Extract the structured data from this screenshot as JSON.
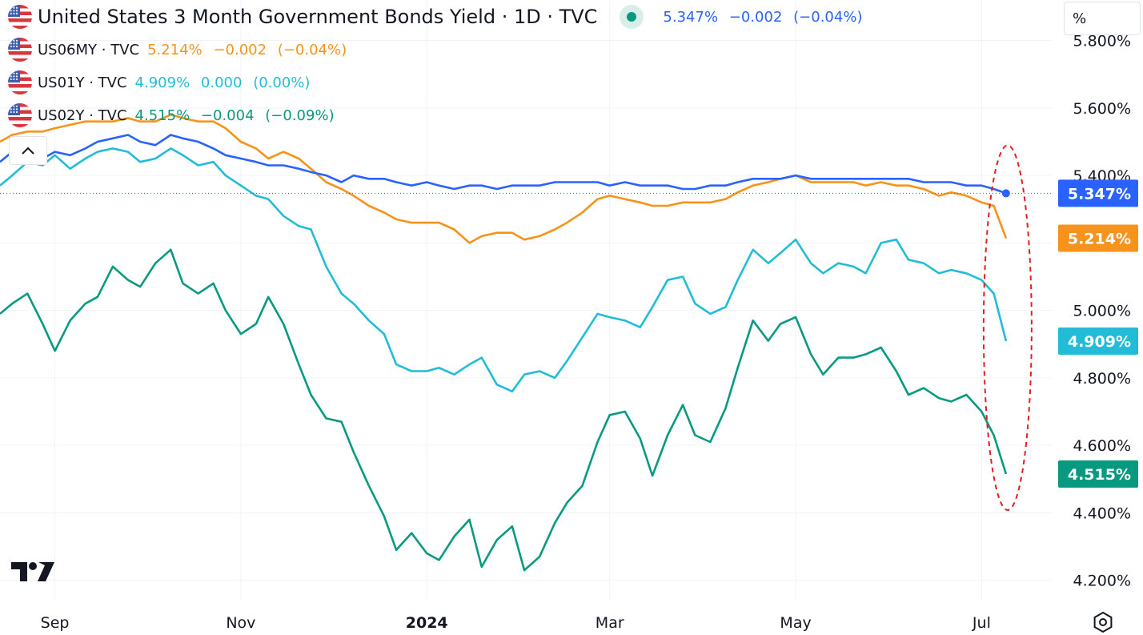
{
  "legend": {
    "main": {
      "symbol": "United States 3 Month Government Bonds Yield · 1D · TVC",
      "last": "5.347%",
      "change": "−0.002",
      "change_pct": "(−0.04%)",
      "color": "#2962ff"
    },
    "rows": [
      {
        "symbol": "US06MY · TVC",
        "last": "5.214%",
        "change": "−0.002",
        "change_pct": "(−0.04%)",
        "color": "#f7931a"
      },
      {
        "symbol": "US01Y · TVC",
        "last": "4.909%",
        "change": "0.000",
        "change_pct": "(0.00%)",
        "color": "#22bcd6"
      },
      {
        "symbol": "US02Y · TVC",
        "last": "4.515%",
        "change": "−0.004",
        "change_pct": "(−0.09%)",
        "color": "#089981"
      }
    ]
  },
  "scale_unit": "%",
  "icons": {
    "collapse": "chevron-up-icon",
    "logo": "tradingview-logo",
    "settings": "settings-icon",
    "dot": "status-dot-icon"
  },
  "chart_data": {
    "type": "line",
    "x_dates": [
      "2023-08-14",
      "2023-08-18",
      "2023-08-23",
      "2023-08-28",
      "2023-09-01",
      "2023-09-06",
      "2023-09-11",
      "2023-09-15",
      "2023-09-20",
      "2023-09-25",
      "2023-09-29",
      "2023-10-04",
      "2023-10-09",
      "2023-10-13",
      "2023-10-18",
      "2023-10-23",
      "2023-10-27",
      "2023-11-01",
      "2023-11-06",
      "2023-11-10",
      "2023-11-15",
      "2023-11-20",
      "2023-11-24",
      "2023-11-29",
      "2023-12-04",
      "2023-12-08",
      "2023-12-13",
      "2023-12-18",
      "2023-12-22",
      "2023-12-27",
      "2024-01-01",
      "2024-01-05",
      "2024-01-10",
      "2024-01-15",
      "2024-01-19",
      "2024-01-24",
      "2024-01-29",
      "2024-02-02",
      "2024-02-07",
      "2024-02-12",
      "2024-02-16",
      "2024-02-21",
      "2024-02-26",
      "2024-03-01",
      "2024-03-06",
      "2024-03-11",
      "2024-03-15",
      "2024-03-20",
      "2024-03-25",
      "2024-03-29",
      "2024-04-03",
      "2024-04-08",
      "2024-04-12",
      "2024-04-17",
      "2024-04-22",
      "2024-04-26",
      "2024-05-01",
      "2024-05-06",
      "2024-05-10",
      "2024-05-15",
      "2024-05-20",
      "2024-05-24",
      "2024-05-29",
      "2024-06-03",
      "2024-06-07",
      "2024-06-12",
      "2024-06-17",
      "2024-06-21",
      "2024-06-26",
      "2024-07-01",
      "2024-07-05",
      "2024-07-09"
    ],
    "series": [
      {
        "id": "US03MY",
        "color": "#2962ff",
        "label_text": "5.347%",
        "values": [
          5.44,
          5.47,
          5.49,
          5.45,
          5.47,
          5.46,
          5.48,
          5.5,
          5.51,
          5.52,
          5.5,
          5.49,
          5.52,
          5.51,
          5.5,
          5.48,
          5.46,
          5.45,
          5.44,
          5.43,
          5.43,
          5.42,
          5.41,
          5.4,
          5.38,
          5.4,
          5.39,
          5.39,
          5.38,
          5.37,
          5.38,
          5.37,
          5.36,
          5.37,
          5.37,
          5.36,
          5.37,
          5.37,
          5.37,
          5.38,
          5.38,
          5.38,
          5.38,
          5.37,
          5.38,
          5.37,
          5.37,
          5.37,
          5.36,
          5.36,
          5.37,
          5.37,
          5.38,
          5.39,
          5.39,
          5.39,
          5.4,
          5.39,
          5.39,
          5.39,
          5.39,
          5.39,
          5.39,
          5.39,
          5.39,
          5.38,
          5.38,
          5.38,
          5.37,
          5.37,
          5.36,
          5.347
        ]
      },
      {
        "id": "US06MY",
        "color": "#f7931a",
        "label_text": "5.214%",
        "values": [
          5.5,
          5.52,
          5.53,
          5.53,
          5.54,
          5.55,
          5.56,
          5.56,
          5.56,
          5.57,
          5.56,
          5.56,
          5.58,
          5.57,
          5.56,
          5.56,
          5.54,
          5.5,
          5.48,
          5.45,
          5.47,
          5.45,
          5.42,
          5.38,
          5.36,
          5.34,
          5.31,
          5.29,
          5.27,
          5.26,
          5.26,
          5.26,
          5.24,
          5.2,
          5.22,
          5.23,
          5.23,
          5.21,
          5.22,
          5.24,
          5.26,
          5.29,
          5.33,
          5.34,
          5.33,
          5.32,
          5.31,
          5.31,
          5.32,
          5.32,
          5.32,
          5.33,
          5.35,
          5.37,
          5.38,
          5.39,
          5.4,
          5.38,
          5.38,
          5.38,
          5.38,
          5.37,
          5.38,
          5.37,
          5.37,
          5.36,
          5.34,
          5.35,
          5.34,
          5.32,
          5.31,
          5.214
        ]
      },
      {
        "id": "US01Y",
        "color": "#22bcd6",
        "label_text": "4.909%",
        "values": [
          5.37,
          5.4,
          5.44,
          5.43,
          5.46,
          5.42,
          5.45,
          5.47,
          5.48,
          5.47,
          5.44,
          5.45,
          5.48,
          5.46,
          5.43,
          5.44,
          5.4,
          5.37,
          5.34,
          5.33,
          5.28,
          5.25,
          5.24,
          5.13,
          5.05,
          5.02,
          4.97,
          4.93,
          4.84,
          4.82,
          4.82,
          4.83,
          4.81,
          4.84,
          4.86,
          4.78,
          4.76,
          4.81,
          4.82,
          4.8,
          4.85,
          4.92,
          4.99,
          4.98,
          4.97,
          4.95,
          5.01,
          5.09,
          5.1,
          5.02,
          4.99,
          5.01,
          5.09,
          5.18,
          5.14,
          5.17,
          5.21,
          5.14,
          5.11,
          5.14,
          5.13,
          5.11,
          5.2,
          5.21,
          5.15,
          5.14,
          5.11,
          5.12,
          5.11,
          5.09,
          5.05,
          4.909
        ]
      },
      {
        "id": "US02Y",
        "color": "#089981",
        "label_text": "4.515%",
        "values": [
          4.99,
          5.02,
          5.05,
          4.96,
          4.88,
          4.97,
          5.02,
          5.04,
          5.13,
          5.09,
          5.07,
          5.14,
          5.18,
          5.08,
          5.05,
          5.08,
          5.0,
          4.93,
          4.96,
          5.04,
          4.96,
          4.84,
          4.75,
          4.68,
          4.67,
          4.58,
          4.48,
          4.39,
          4.29,
          4.34,
          4.28,
          4.26,
          4.33,
          4.38,
          4.24,
          4.32,
          4.36,
          4.23,
          4.27,
          4.37,
          4.43,
          4.48,
          4.61,
          4.69,
          4.7,
          4.62,
          4.51,
          4.63,
          4.72,
          4.63,
          4.61,
          4.71,
          4.83,
          4.97,
          4.91,
          4.96,
          4.98,
          4.87,
          4.81,
          4.86,
          4.86,
          4.87,
          4.89,
          4.82,
          4.75,
          4.77,
          4.74,
          4.73,
          4.75,
          4.7,
          4.63,
          4.515
        ]
      }
    ],
    "y_ticks": [
      4.2,
      4.4,
      4.6,
      4.8,
      5.0,
      5.2,
      5.4,
      5.6,
      5.8
    ],
    "y_tick_labels": [
      "4.200%",
      "4.400%",
      "4.600%",
      "4.800%",
      "5.000%",
      "5.200%",
      "5.400%",
      "5.600%",
      "5.800%"
    ],
    "ylim": [
      4.14,
      5.92
    ],
    "x_ticks": [
      {
        "label": "Sep",
        "date": "2023-09-01",
        "bold": false
      },
      {
        "label": "Nov",
        "date": "2023-11-01",
        "bold": false
      },
      {
        "label": "2024",
        "date": "2024-01-01",
        "bold": true
      },
      {
        "label": "Mar",
        "date": "2024-03-01",
        "bold": false
      },
      {
        "label": "May",
        "date": "2024-05-01",
        "bold": false
      },
      {
        "label": "Jul",
        "date": "2024-07-01",
        "bold": false
      }
    ],
    "xlim": [
      "2023-08-14",
      "2024-07-24"
    ],
    "grid": true,
    "annotation": {
      "shape": "dashed ellipse",
      "color": "#e02020",
      "around": "latest values"
    }
  }
}
